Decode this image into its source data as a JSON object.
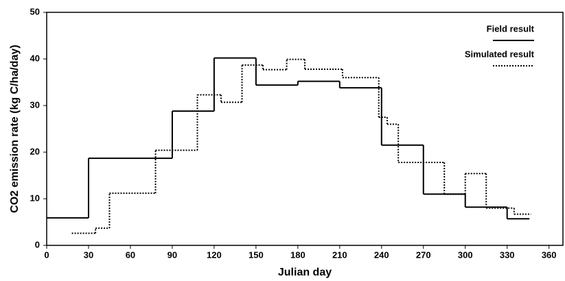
{
  "chart_data": {
    "type": "step",
    "x_label": "Julian day",
    "y_label": "CO2 emission rate (kg C/ha/day)",
    "xlim": [
      0,
      370
    ],
    "xticks": [
      0,
      30,
      60,
      90,
      120,
      150,
      180,
      210,
      240,
      270,
      300,
      330,
      360
    ],
    "ylim": [
      0,
      50
    ],
    "yticks": [
      0,
      10,
      20,
      30,
      40,
      50
    ],
    "grid": false,
    "legend": "upper right",
    "series": [
      {
        "name": "Field result",
        "color": "#000000",
        "style": "solid",
        "x": [
          0,
          30,
          90,
          120,
          150,
          180,
          210,
          240,
          270,
          300,
          330,
          346
        ],
        "values": [
          5.9,
          18.7,
          28.8,
          40.2,
          34.4,
          35.2,
          33.8,
          21.5,
          11,
          8.2,
          5.7,
          5.7
        ]
      },
      {
        "name": "Simulated result",
        "color": "#000000",
        "style": "dotted",
        "x": [
          18,
          35,
          45,
          78,
          108,
          125,
          140,
          155,
          172,
          185,
          212,
          238,
          244,
          252,
          285,
          300,
          315,
          335,
          347
        ],
        "values": [
          2.6,
          3.7,
          11.2,
          20.4,
          32.3,
          30.7,
          38.7,
          37.7,
          39.9,
          37.8,
          36,
          27.5,
          26,
          17.8,
          11,
          15.4,
          8,
          6.7,
          6.7
        ]
      }
    ]
  }
}
